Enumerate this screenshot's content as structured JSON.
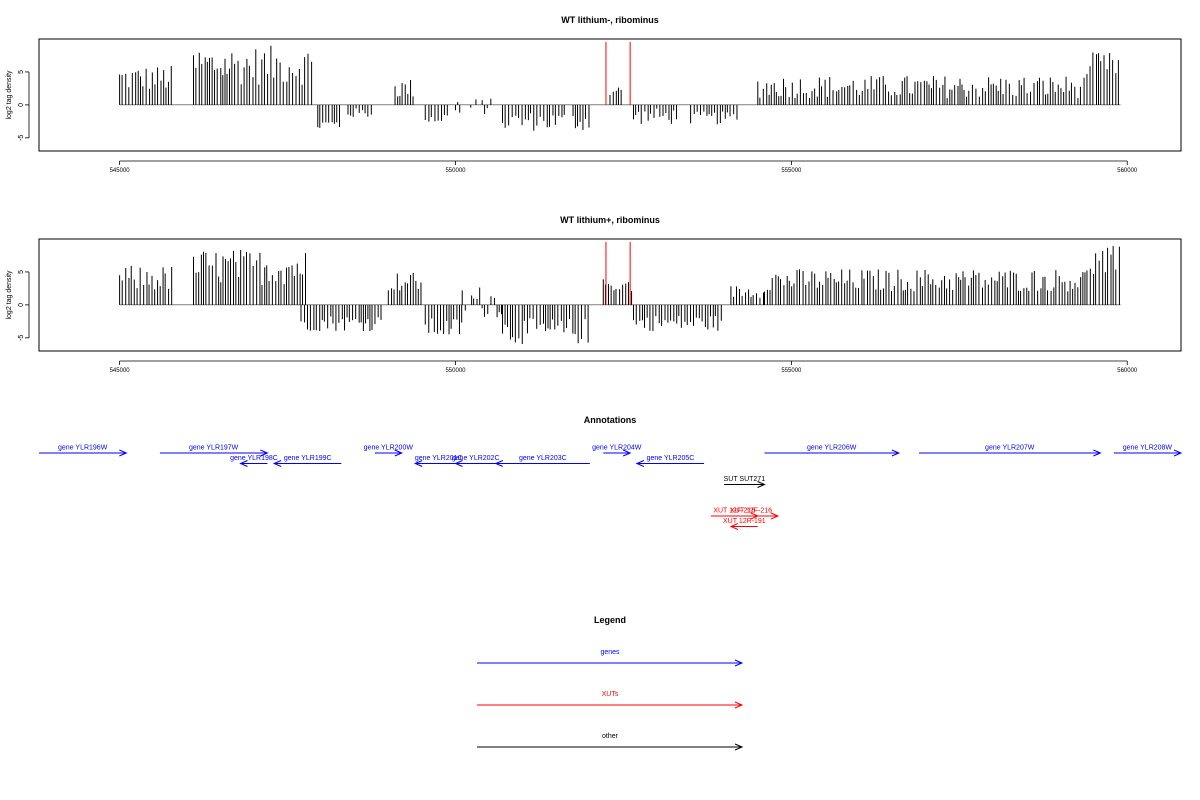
{
  "chart_data": [
    {
      "type": "bar",
      "title": "WT lithium-, ribominus",
      "ylabel": "log2 tag density",
      "xlim": [
        543800,
        560800
      ],
      "ylim": [
        -7,
        10
      ],
      "x_ticks": [
        545000,
        550000,
        555000,
        560000
      ],
      "x_tick_labels": [
        "545000",
        "550000",
        "555000",
        "560000"
      ],
      "y_ticks": [
        -5,
        0,
        5
      ],
      "y_tick_labels": [
        "-5",
        "0",
        "5"
      ],
      "color": "#000000",
      "highlight_color": "#ff0000",
      "highlight_x": [
        552240,
        552600
      ],
      "segments": [
        {
          "x": [
            545000,
            545800
          ],
          "v": [
            2,
            6
          ]
        },
        {
          "x": [
            546100,
            547900
          ],
          "v": [
            3,
            9
          ]
        },
        {
          "x": [
            547950,
            548300
          ],
          "v": [
            -4,
            -2
          ]
        },
        {
          "x": [
            548400,
            548750
          ],
          "v": [
            -2,
            -0.5
          ]
        },
        {
          "x": [
            549100,
            549400
          ],
          "v": [
            1,
            4
          ]
        },
        {
          "x": [
            549550,
            549900
          ],
          "v": [
            -3,
            -1
          ]
        },
        {
          "x": [
            550000,
            550550
          ],
          "v": [
            -1.5,
            1
          ]
        },
        {
          "x": [
            550700,
            551650
          ],
          "v": [
            -4,
            -1
          ]
        },
        {
          "x": [
            551750,
            552000
          ],
          "v": [
            -4,
            -1
          ]
        },
        {
          "x": [
            552300,
            552500
          ],
          "v": [
            1,
            3
          ]
        },
        {
          "x": [
            552650,
            553300
          ],
          "v": [
            -3,
            -0.5
          ]
        },
        {
          "x": [
            553500,
            554200
          ],
          "v": [
            -3,
            -1
          ]
        },
        {
          "x": [
            554500,
            559400
          ],
          "v": [
            1,
            4.5
          ]
        },
        {
          "x": [
            559400,
            559900
          ],
          "v": [
            4,
            8
          ]
        }
      ]
    },
    {
      "type": "bar",
      "title": "WT lithium+, ribominus",
      "ylabel": "log2 tag density",
      "xlim": [
        543800,
        560800
      ],
      "ylim": [
        -7,
        10
      ],
      "x_ticks": [
        545000,
        550000,
        555000,
        560000
      ],
      "x_tick_labels": [
        "545000",
        "550000",
        "555000",
        "560000"
      ],
      "y_ticks": [
        -5,
        0,
        5
      ],
      "y_tick_labels": [
        "-5",
        "0",
        "5"
      ],
      "color": "#000000",
      "highlight_color": "#ff0000",
      "highlight_x": [
        552240,
        552600
      ],
      "segments": [
        {
          "x": [
            545000,
            545800
          ],
          "v": [
            2,
            6
          ]
        },
        {
          "x": [
            546100,
            547800
          ],
          "v": [
            3,
            8.5
          ]
        },
        {
          "x": [
            547700,
            548900
          ],
          "v": [
            -4,
            -1.5
          ]
        },
        {
          "x": [
            549000,
            549500
          ],
          "v": [
            2,
            5
          ]
        },
        {
          "x": [
            549550,
            550100
          ],
          "v": [
            -5,
            -2
          ]
        },
        {
          "x": [
            550100,
            550700
          ],
          "v": [
            -2,
            3
          ]
        },
        {
          "x": [
            550700,
            552000
          ],
          "v": [
            -6,
            -2
          ]
        },
        {
          "x": [
            552200,
            552650
          ],
          "v": [
            2,
            4
          ]
        },
        {
          "x": [
            552650,
            554000
          ],
          "v": [
            -4,
            -1.5
          ]
        },
        {
          "x": [
            554100,
            554600
          ],
          "v": [
            1,
            3
          ]
        },
        {
          "x": [
            554600,
            559400
          ],
          "v": [
            2,
            5.5
          ]
        },
        {
          "x": [
            559400,
            559900
          ],
          "v": [
            4,
            9
          ]
        }
      ]
    }
  ],
  "annotations": {
    "title": "Annotations",
    "xlim": [
      543800,
      560800
    ],
    "colors": {
      "gene": "#0000ff",
      "xut": "#ff0000",
      "other": "#000000"
    },
    "features": [
      {
        "label": "gene YLR196W",
        "start": 543800,
        "end": 545100,
        "strand": "+",
        "kind": "gene",
        "row": 0
      },
      {
        "label": "gene YLR197W",
        "start": 545600,
        "end": 547200,
        "strand": "+",
        "kind": "gene",
        "row": 0
      },
      {
        "label": "gene YLR198C",
        "start": 546800,
        "end": 547200,
        "strand": "-",
        "kind": "gene",
        "row": 1
      },
      {
        "label": "gene YLR199C",
        "start": 547300,
        "end": 548300,
        "strand": "-",
        "kind": "gene",
        "row": 1
      },
      {
        "label": "gene YLR200W",
        "start": 548800,
        "end": 549200,
        "strand": "+",
        "kind": "gene",
        "row": 0
      },
      {
        "label": "gene YLR201C",
        "start": 549400,
        "end": 550100,
        "strand": "-",
        "kind": "gene",
        "row": 1
      },
      {
        "label": "gene YLR202C",
        "start": 550000,
        "end": 550600,
        "strand": "-",
        "kind": "gene",
        "row": 1
      },
      {
        "label": "gene YLR203C",
        "start": 550600,
        "end": 552000,
        "strand": "-",
        "kind": "gene",
        "row": 1
      },
      {
        "label": "gene YLR204W",
        "start": 552200,
        "end": 552600,
        "strand": "+",
        "kind": "gene",
        "row": 0
      },
      {
        "label": "gene YLR205C",
        "start": 552700,
        "end": 553700,
        "strand": "-",
        "kind": "gene",
        "row": 1
      },
      {
        "label": "gene YLR206W",
        "start": 554600,
        "end": 556600,
        "strand": "+",
        "kind": "gene",
        "row": 0
      },
      {
        "label": "gene YLR207W",
        "start": 556900,
        "end": 559600,
        "strand": "+",
        "kind": "gene",
        "row": 0
      },
      {
        "label": "gene YLR208W",
        "start": 559800,
        "end": 560800,
        "strand": "+",
        "kind": "gene",
        "row": 0
      },
      {
        "label": "SUT SUT271",
        "start": 554000,
        "end": 554600,
        "strand": "+",
        "kind": "other",
        "row": 3
      },
      {
        "label": "XUT 12F-216",
        "start": 553800,
        "end": 554500,
        "strand": "+",
        "kind": "xut",
        "row": 6
      },
      {
        "label": "XUT 12R-191",
        "start": 554100,
        "end": 554500,
        "strand": "-",
        "kind": "xut",
        "row": 7
      },
      {
        "label": "XUT 12F-216",
        "start": 554000,
        "end": 554800,
        "strand": "+",
        "kind": "xut",
        "row": 6
      }
    ]
  },
  "legend": {
    "title": "Legend",
    "items": [
      {
        "label": "genes",
        "color": "#0000ff"
      },
      {
        "label": "XUTs",
        "color": "#ff0000"
      },
      {
        "label": "other",
        "color": "#000000"
      }
    ]
  }
}
